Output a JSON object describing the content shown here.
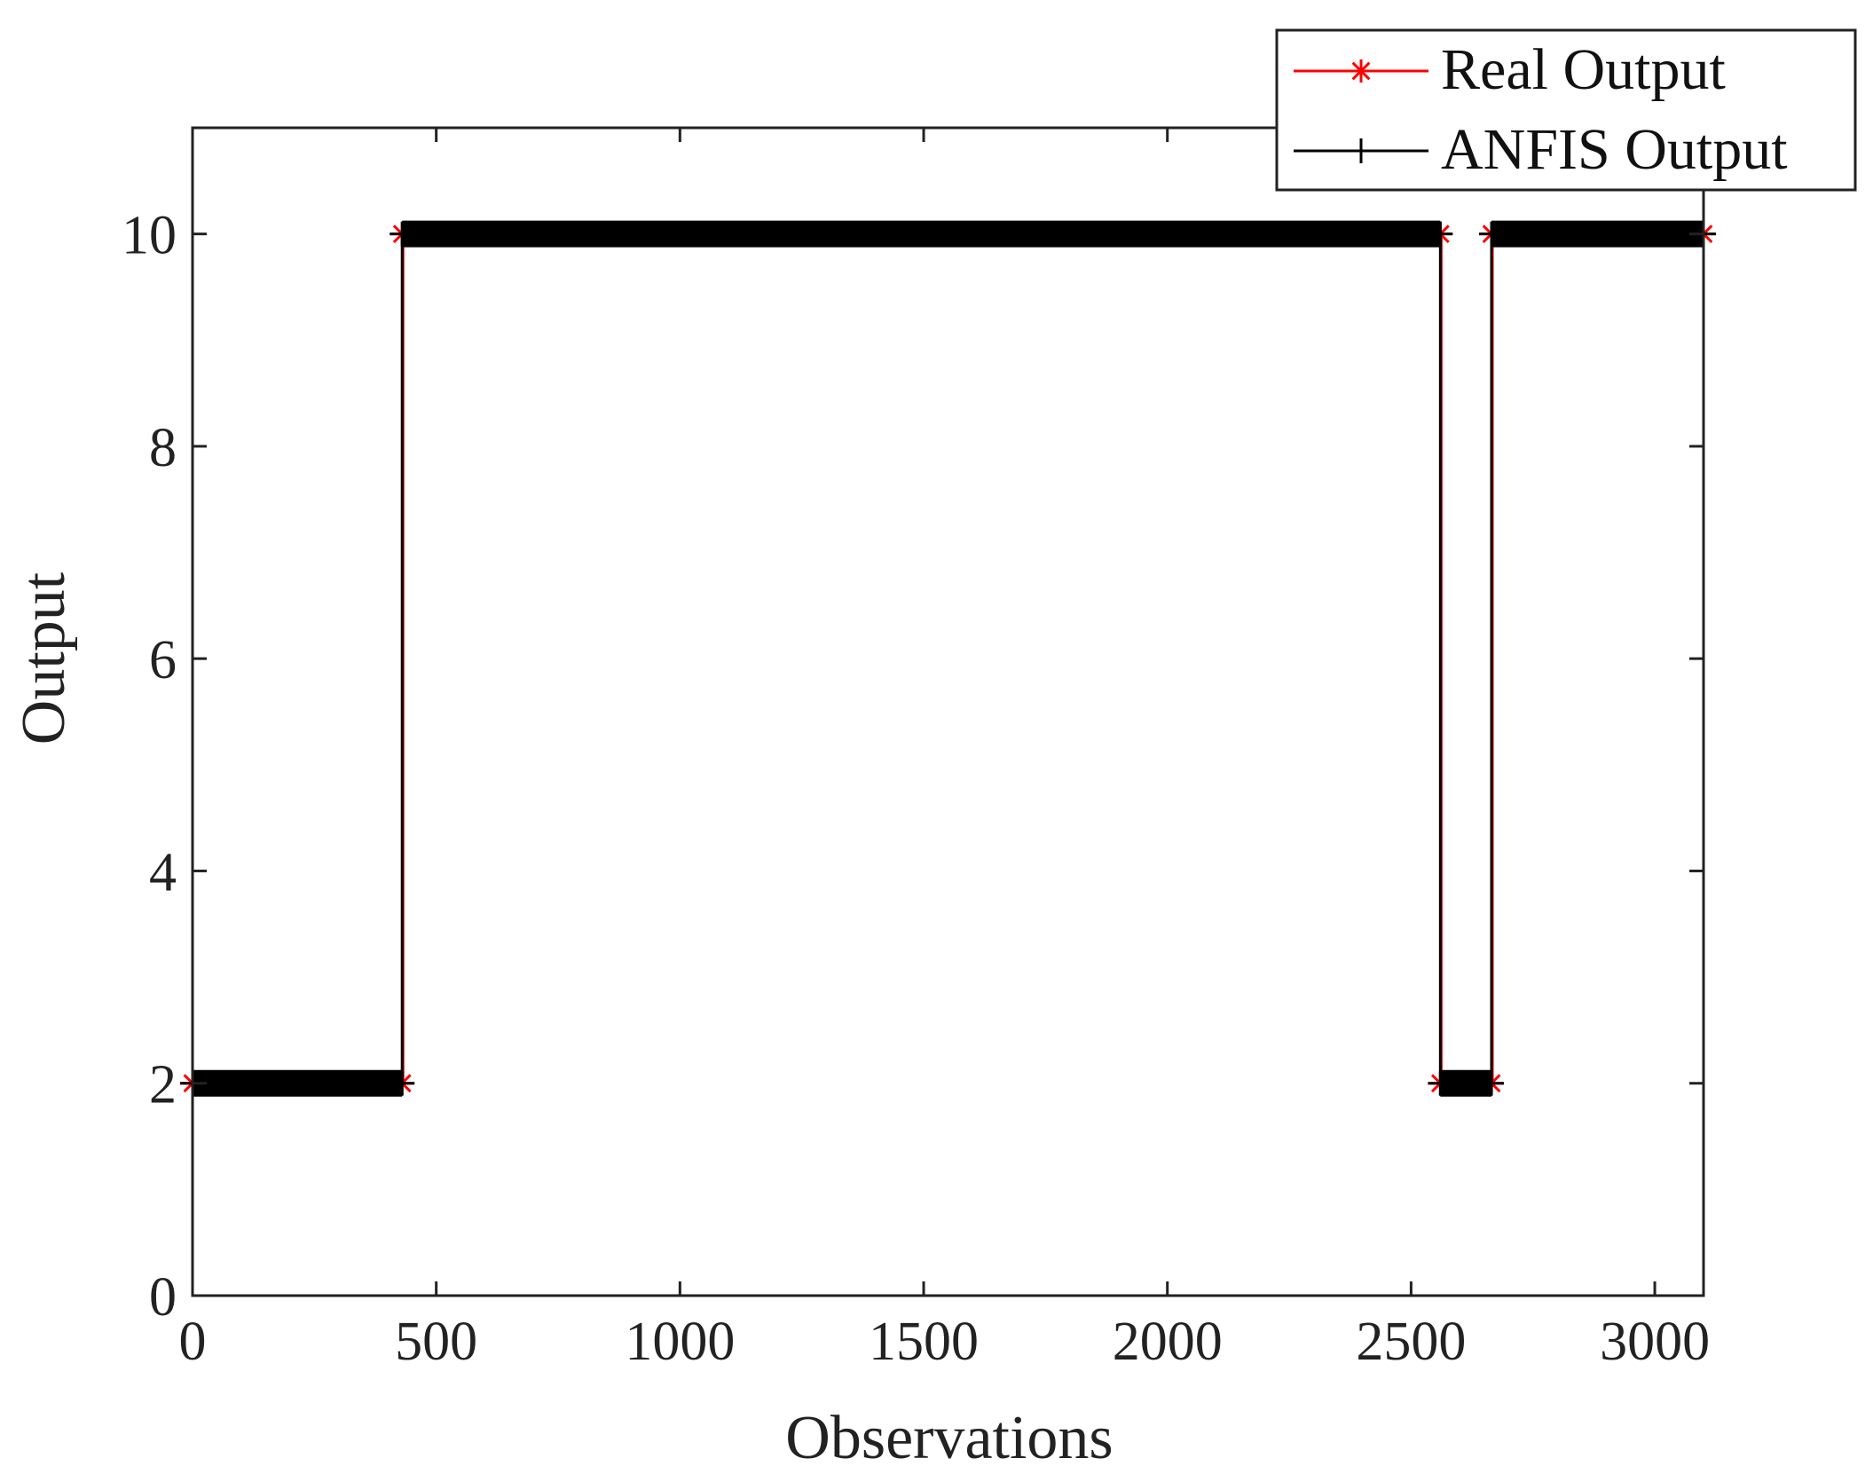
{
  "chart_data": {
    "type": "line",
    "xlabel": "Observations",
    "ylabel": "Output",
    "xlim": [
      0,
      3100
    ],
    "ylim": [
      0,
      11
    ],
    "xticks": [
      0,
      500,
      1000,
      1500,
      2000,
      2500,
      3000
    ],
    "yticks": [
      0,
      2,
      4,
      6,
      8,
      10
    ],
    "grid": false,
    "legend_position": "top-right",
    "series": [
      {
        "name": "Real Output",
        "color": "#ff0000",
        "marker": "asterisk",
        "segments": [
          {
            "x_start": 0,
            "x_end": 430,
            "y": 2
          },
          {
            "x_start": 430,
            "x_end": 2560,
            "y": 10
          },
          {
            "x_start": 2560,
            "x_end": 2665,
            "y": 2
          },
          {
            "x_start": 2665,
            "x_end": 3100,
            "y": 10
          }
        ]
      },
      {
        "name": "ANFIS Output",
        "color": "#000000",
        "marker": "plus",
        "segments": [
          {
            "x_start": 0,
            "x_end": 430,
            "y": 2
          },
          {
            "x_start": 430,
            "x_end": 2560,
            "y": 10
          },
          {
            "x_start": 2560,
            "x_end": 2665,
            "y": 2
          },
          {
            "x_start": 2665,
            "x_end": 3100,
            "y": 10
          }
        ]
      }
    ]
  }
}
